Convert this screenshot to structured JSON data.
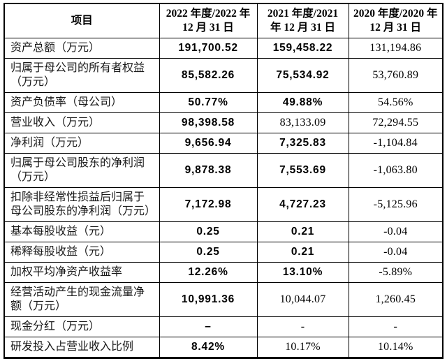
{
  "colors": {
    "background": "#ffffff",
    "border": "#000000",
    "text": "#1a1a1a"
  },
  "table": {
    "columns": [
      {
        "id": "item",
        "text": "项目"
      },
      {
        "id": "y2022",
        "text": "2022 年度/2022 年\n12 月 31 日"
      },
      {
        "id": "y2021",
        "text": "2021 年度/2021\n年 12 月 31 日"
      },
      {
        "id": "y2020",
        "text": "2020 年度/2020 年\n12 月 31 日"
      }
    ],
    "rows": [
      {
        "label": "资产总额（万元）",
        "values": [
          "191,700.52",
          "159,458.22",
          "131,194.86"
        ],
        "bold": [
          true,
          true,
          false
        ]
      },
      {
        "label": "归属于母公司的所有者权益（万元）",
        "values": [
          "85,582.26",
          "75,534.92",
          "53,760.89"
        ],
        "bold": [
          true,
          true,
          false
        ]
      },
      {
        "label": "资产负债率（母公司）",
        "values": [
          "50.77%",
          "49.88%",
          "54.56%"
        ],
        "bold": [
          true,
          true,
          false
        ]
      },
      {
        "label": "营业收入（万元）",
        "values": [
          "98,398.58",
          "83,133.09",
          "72,294.55"
        ],
        "bold": [
          true,
          false,
          false
        ]
      },
      {
        "label": "净利润（万元）",
        "values": [
          "9,656.94",
          "7,325.83",
          "-1,104.84"
        ],
        "bold": [
          true,
          true,
          false
        ]
      },
      {
        "label": "归属于母公司股东的净利润（万元）",
        "values": [
          "9,878.38",
          "7,553.69",
          "-1,063.80"
        ],
        "bold": [
          true,
          true,
          false
        ]
      },
      {
        "label": "扣除非经常性损益后归属于母公司股东的净利润（万元）",
        "values": [
          "7,172.98",
          "4,727.23",
          "-5,125.96"
        ],
        "bold": [
          true,
          true,
          false
        ]
      },
      {
        "label": "基本每股收益（元）",
        "values": [
          "0.25",
          "0.21",
          "-0.04"
        ],
        "bold": [
          true,
          true,
          false
        ]
      },
      {
        "label": "稀释每股收益（元）",
        "values": [
          "0.25",
          "0.21",
          "-0.04"
        ],
        "bold": [
          true,
          true,
          false
        ]
      },
      {
        "label": "加权平均净资产收益率",
        "values": [
          "12.26%",
          "13.10%",
          "-5.89%"
        ],
        "bold": [
          true,
          true,
          false
        ]
      },
      {
        "label": "经营活动产生的现金流量净额（万元）",
        "values": [
          "10,991.36",
          "10,044.07",
          "1,260.45"
        ],
        "bold": [
          true,
          false,
          false
        ]
      },
      {
        "label": "现金分红（万元）",
        "values": [
          "–",
          "-",
          "-"
        ],
        "bold": [
          true,
          false,
          false
        ]
      },
      {
        "label": "研发投入占营业收入比例",
        "values": [
          "8.42%",
          "10.17%",
          "10.14%"
        ],
        "bold": [
          true,
          false,
          false
        ]
      }
    ]
  }
}
